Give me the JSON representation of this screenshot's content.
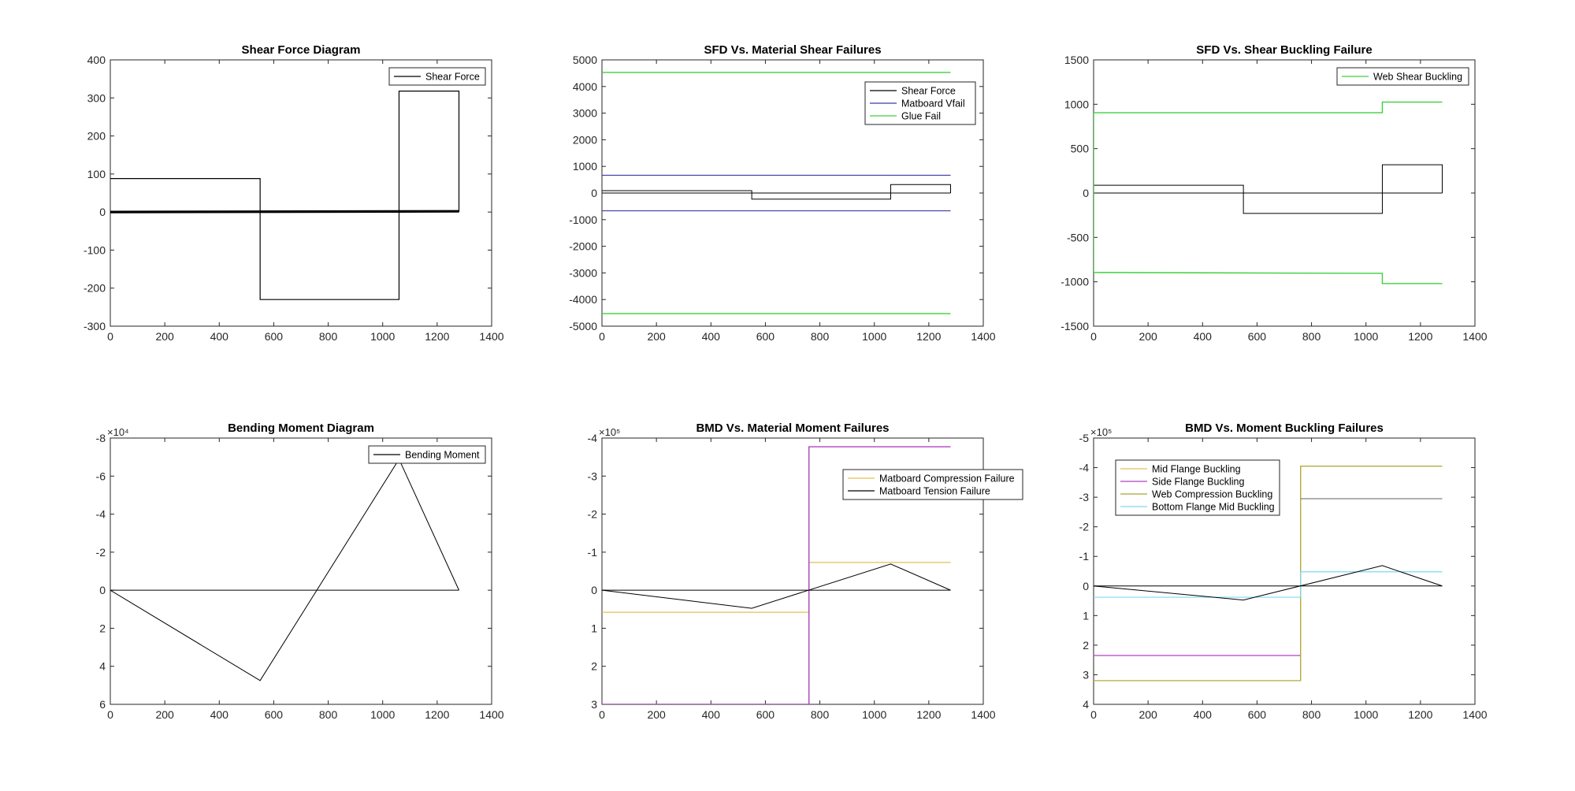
{
  "figure": {
    "background": "#ffffff",
    "layout": "2 rows x 3 columns"
  },
  "colors": {
    "black": "#000000",
    "blue": "#3a3aa8",
    "green": "#3cd03c",
    "yellow": "#e0c050",
    "purple": "#b040c0",
    "olive": "#a8a838",
    "gray": "#808080",
    "cyan": "#7fd8f0"
  },
  "chart_data": [
    {
      "id": "sfd",
      "type": "line",
      "title": "Shear Force Diagram",
      "xlabel": "",
      "ylabel": "",
      "xlim": [
        0,
        1400
      ],
      "ylim": [
        -300,
        400
      ],
      "y_reversed": false,
      "xticks": [
        0,
        200,
        400,
        600,
        800,
        1000,
        1200,
        1400
      ],
      "yticks": [
        -300,
        -200,
        -100,
        0,
        100,
        200,
        300,
        400
      ],
      "tick_labels_y": [
        "-300",
        "-200",
        "-100",
        "0",
        "100",
        "200",
        "300",
        "400"
      ],
      "exponent_label": "",
      "legend_position": "top-right",
      "series": [
        {
          "name": "Shear Force",
          "color": "black",
          "width": 1.2,
          "in_legend": true,
          "x": [
            0,
            550,
            550,
            1060,
            1060,
            1280,
            1280
          ],
          "y": [
            88,
            88,
            -230,
            -230,
            318,
            318,
            0
          ]
        },
        {
          "color": "black",
          "width": 3.2,
          "in_legend": false,
          "x": [
            0,
            1280
          ],
          "y": [
            0,
            2
          ]
        }
      ]
    },
    {
      "id": "sfd-material",
      "type": "line",
      "title": "SFD Vs. Material Shear Failures",
      "xlabel": "",
      "ylabel": "",
      "xlim": [
        0,
        1400
      ],
      "ylim": [
        -5000,
        5000
      ],
      "y_reversed": false,
      "xticks": [
        0,
        200,
        400,
        600,
        800,
        1000,
        1200,
        1400
      ],
      "yticks": [
        -5000,
        -4000,
        -3000,
        -2000,
        -1000,
        0,
        1000,
        2000,
        3000,
        4000,
        5000
      ],
      "tick_labels_y": [
        "-5000",
        "-4000",
        "-3000",
        "-2000",
        "-1000",
        "0",
        "1000",
        "2000",
        "3000",
        "4000",
        "5000"
      ],
      "exponent_label": "",
      "legend_position": "top-right",
      "series": [
        {
          "name": "Shear Force",
          "color": "black",
          "width": 1,
          "in_legend": true,
          "x": [
            0,
            550,
            550,
            1060,
            1060,
            1280,
            1280
          ],
          "y": [
            88,
            88,
            -230,
            -230,
            318,
            318,
            0
          ]
        },
        {
          "color": "black",
          "width": 1,
          "in_legend": false,
          "x": [
            0,
            1280
          ],
          "y": [
            0,
            0
          ]
        },
        {
          "name": "Matboard Vfail",
          "color": "blue",
          "width": 1.2,
          "in_legend": true,
          "x": [
            0,
            1280
          ],
          "y": [
            667,
            667
          ]
        },
        {
          "color": "blue",
          "width": 1.2,
          "in_legend": false,
          "x": [
            0,
            1280
          ],
          "y": [
            -667,
            -667
          ]
        },
        {
          "name": "Glue Fail",
          "color": "green",
          "width": 1.4,
          "in_legend": true,
          "x": [
            0,
            1280
          ],
          "y": [
            4530,
            4530
          ]
        },
        {
          "color": "green",
          "width": 1.4,
          "in_legend": false,
          "x": [
            0,
            1280
          ],
          "y": [
            -4530,
            -4530
          ]
        }
      ]
    },
    {
      "id": "sfd-buckling",
      "type": "line",
      "title": "SFD Vs. Shear Buckling Failure",
      "xlabel": "",
      "ylabel": "",
      "xlim": [
        0,
        1400
      ],
      "ylim": [
        -1500,
        1500
      ],
      "y_reversed": false,
      "xticks": [
        0,
        200,
        400,
        600,
        800,
        1000,
        1200,
        1400
      ],
      "yticks": [
        -1500,
        -1000,
        -500,
        0,
        500,
        1000,
        1500
      ],
      "tick_labels_y": [
        "-1500",
        "-1000",
        "-500",
        "0",
        "500",
        "1000",
        "1500"
      ],
      "exponent_label": "",
      "legend_position": "top-right",
      "series": [
        {
          "color": "black",
          "width": 1,
          "in_legend": false,
          "x": [
            0,
            550,
            550,
            1060,
            1060,
            1280,
            1280
          ],
          "y": [
            88,
            88,
            -230,
            -230,
            318,
            318,
            0
          ]
        },
        {
          "color": "black",
          "width": 1,
          "in_legend": false,
          "x": [
            0,
            1280
          ],
          "y": [
            0,
            0
          ]
        },
        {
          "name": "Web Shear Buckling",
          "color": "green",
          "width": 1.4,
          "in_legend": true,
          "x": [
            0,
            0,
            1060,
            1060,
            1280
          ],
          "y": [
            0,
            905,
            905,
            1025,
            1025
          ]
        },
        {
          "color": "green",
          "width": 1.4,
          "in_legend": false,
          "x": [
            0,
            0,
            1060,
            1060,
            1280
          ],
          "y": [
            0,
            -895,
            -905,
            -1020,
            -1020
          ]
        }
      ]
    },
    {
      "id": "bmd",
      "type": "line",
      "title": "Bending Moment Diagram",
      "xlabel": "",
      "ylabel": "",
      "xlim": [
        0,
        1400
      ],
      "ylim": [
        -80000,
        60000
      ],
      "y_reversed": true,
      "xticks": [
        0,
        200,
        400,
        600,
        800,
        1000,
        1200,
        1400
      ],
      "yticks": [
        -80000,
        -60000,
        -40000,
        -20000,
        0,
        20000,
        40000,
        60000
      ],
      "tick_labels_y": [
        "-8",
        "-6",
        "-4",
        "-2",
        "0",
        "2",
        "4",
        "6"
      ],
      "exponent_label": "×10⁴",
      "legend_position": "top-right",
      "series": [
        {
          "name": "Bending Moment",
          "color": "black",
          "width": 1,
          "in_legend": true,
          "x": [
            0,
            550,
            1060,
            1280
          ],
          "y": [
            0,
            47500,
            -68900,
            0
          ]
        },
        {
          "color": "black",
          "width": 1,
          "in_legend": false,
          "x": [
            0,
            1280
          ],
          "y": [
            0,
            0
          ]
        }
      ]
    },
    {
      "id": "bmd-material",
      "type": "line",
      "title": "BMD Vs. Material Moment Failures",
      "xlabel": "",
      "ylabel": "",
      "xlim": [
        0,
        1400
      ],
      "ylim": [
        -400000,
        300000
      ],
      "y_reversed": true,
      "xticks": [
        0,
        200,
        400,
        600,
        800,
        1000,
        1200,
        1400
      ],
      "yticks": [
        -400000,
        -300000,
        -200000,
        -100000,
        0,
        100000,
        200000,
        300000
      ],
      "tick_labels_y": [
        "-4",
        "-3",
        "-2",
        "-1",
        "0",
        "1",
        "2",
        "3"
      ],
      "exponent_label": "×10⁵",
      "legend_position": "top-right",
      "series": [
        {
          "name": "Matboard Compression Failure",
          "color": "yellow",
          "width": 1.2,
          "in_legend": true,
          "x": [
            0,
            760,
            760,
            1280
          ],
          "y": [
            58000,
            58000,
            -73000,
            -73000
          ]
        },
        {
          "name": "Matboard Tension Failure",
          "color": "black",
          "width": 1,
          "in_legend": true,
          "x": [
            0,
            550,
            1060,
            1280
          ],
          "y": [
            0,
            47500,
            -68900,
            0
          ]
        },
        {
          "color": "purple",
          "width": 1.4,
          "in_legend": false,
          "x": [
            0,
            760,
            760,
            1280
          ],
          "y": [
            300000,
            300000,
            -377000,
            -377000
          ]
        },
        {
          "color": "black",
          "width": 1,
          "in_legend": false,
          "x": [
            0,
            1280
          ],
          "y": [
            0,
            0
          ]
        }
      ]
    },
    {
      "id": "bmd-buckling",
      "type": "line",
      "title": "BMD Vs. Moment Buckling Failures",
      "xlabel": "",
      "ylabel": "",
      "xlim": [
        0,
        1400
      ],
      "ylim": [
        -500000,
        400000
      ],
      "y_reversed": true,
      "xticks": [
        0,
        200,
        400,
        600,
        800,
        1000,
        1200,
        1400
      ],
      "yticks": [
        -500000,
        -400000,
        -300000,
        -200000,
        -100000,
        0,
        100000,
        200000,
        300000,
        400000
      ],
      "tick_labels_y": [
        "-5",
        "-4",
        "-3",
        "-2",
        "-1",
        "0",
        "1",
        "2",
        "3",
        "4"
      ],
      "exponent_label": "×10⁵",
      "legend_position": "top-left",
      "series": [
        {
          "name": "Mid Flange Buckling",
          "color": "yellow",
          "width": 1.2,
          "in_legend": true,
          "x": [
            0,
            760,
            760,
            1280
          ],
          "y": [
            320000,
            320000,
            -405000,
            -405000
          ]
        },
        {
          "name": "Side Flange Buckling",
          "color": "purple",
          "width": 1.2,
          "in_legend": true,
          "x": [
            0,
            760
          ],
          "y": [
            235000,
            235000
          ]
        },
        {
          "name": "Web Compression Buckling",
          "color": "olive",
          "width": 1.2,
          "in_legend": true,
          "x": [
            0,
            760,
            760,
            1280
          ],
          "y": [
            320000,
            320000,
            -405000,
            -405000
          ]
        },
        {
          "color": "gray",
          "width": 1.2,
          "in_legend": false,
          "x": [
            760,
            1280
          ],
          "y": [
            -295000,
            -295000
          ]
        },
        {
          "name": "Bottom Flange Mid Buckling",
          "color": "cyan",
          "width": 1.2,
          "in_legend": true,
          "x": [
            0,
            760,
            760,
            1280
          ],
          "y": [
            38000,
            38000,
            -48000,
            -48000
          ]
        },
        {
          "color": "black",
          "width": 1,
          "in_legend": false,
          "x": [
            0,
            550,
            1060,
            1280
          ],
          "y": [
            0,
            47500,
            -68900,
            0
          ]
        },
        {
          "color": "black",
          "width": 1,
          "in_legend": false,
          "x": [
            0,
            1280
          ],
          "y": [
            0,
            0
          ]
        }
      ]
    }
  ]
}
